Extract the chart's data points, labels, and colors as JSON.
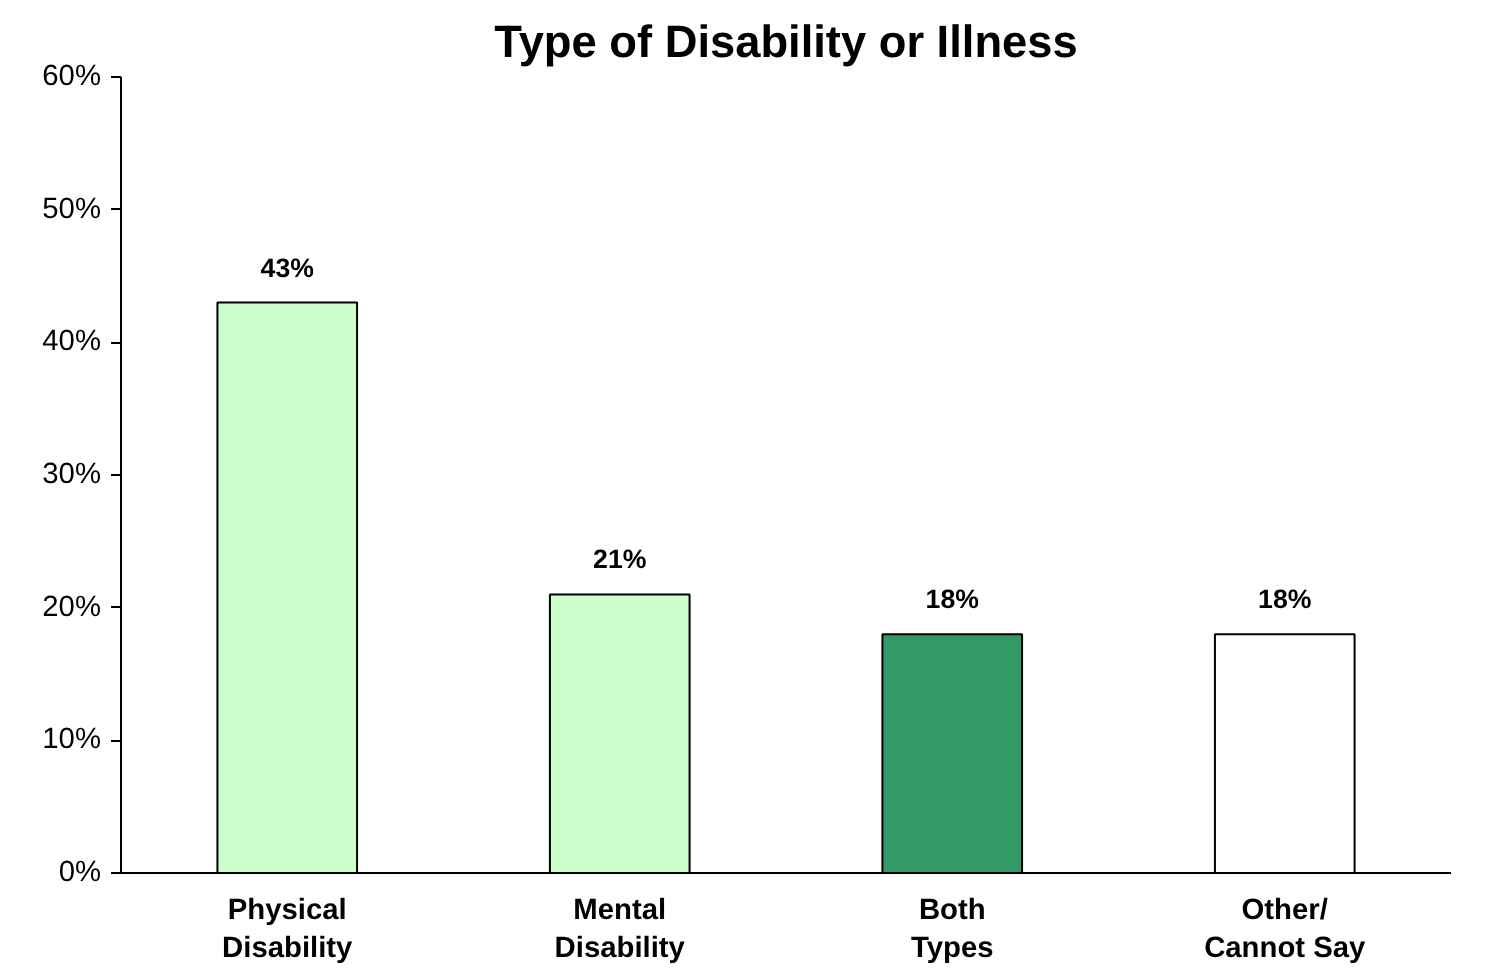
{
  "chart_data": {
    "type": "bar",
    "title": "Type of Disability or Illness",
    "categories": [
      "Physical\nDisability",
      "Mental\nDisability",
      "Both\nTypes",
      "Other/\nCannot Say"
    ],
    "values": [
      43,
      21,
      18,
      18
    ],
    "colors": [
      "#ccffcc",
      "#ccffcc",
      "#339966",
      "#ffffff"
    ],
    "value_labels": [
      "43%",
      "21%",
      "18%",
      "18%"
    ],
    "ylim": [
      0,
      60
    ],
    "yticks": [
      {
        "value": 0,
        "label": "0%"
      },
      {
        "value": 10,
        "label": "10%"
      },
      {
        "value": 20,
        "label": "20%"
      },
      {
        "value": 30,
        "label": "30%"
      },
      {
        "value": 40,
        "label": "40%"
      },
      {
        "value": 50,
        "label": "50%"
      },
      {
        "value": 60,
        "label": "60%"
      }
    ],
    "grid": false
  }
}
